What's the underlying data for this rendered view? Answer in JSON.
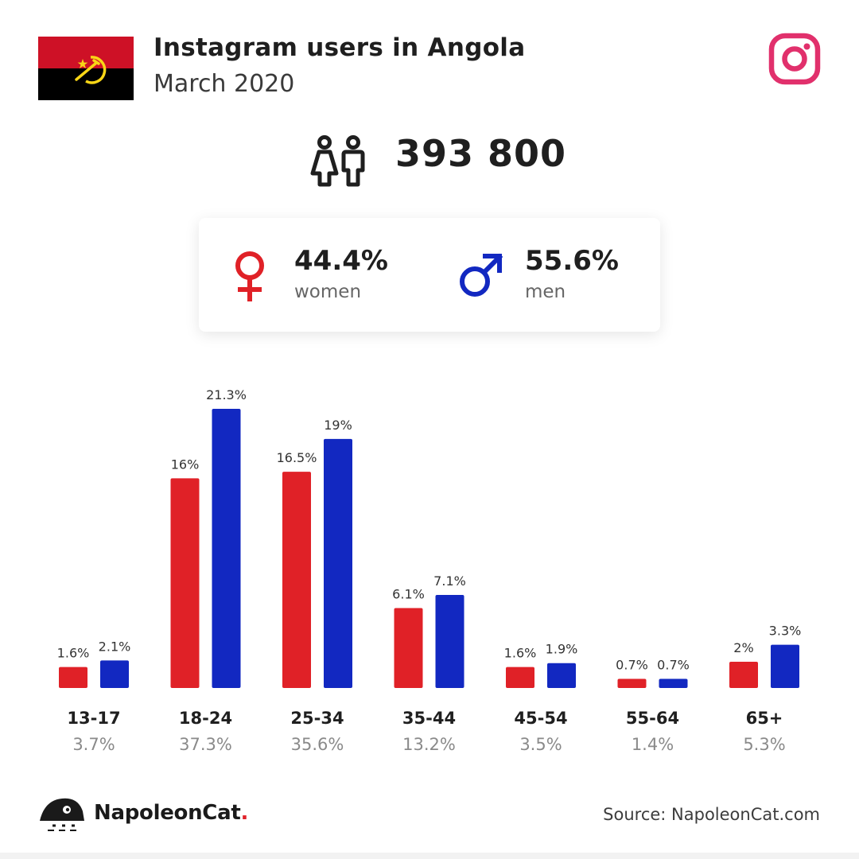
{
  "header": {
    "title": "Instagram users in Angola",
    "subtitle": "March 2020"
  },
  "summary": {
    "total_users": "393 800",
    "women_pct": "44.4%",
    "women_label": "women",
    "men_pct": "55.6%",
    "men_label": "men"
  },
  "colors": {
    "women": "#e02127",
    "men": "#1228c1",
    "instagram": "#e1306c",
    "flag_red": "#ce1126",
    "flag_black": "#000000",
    "flag_emblem": "#f9d616"
  },
  "icons": {
    "flag": "angola-flag-icon",
    "instagram": "instagram-icon",
    "people": "people-icon",
    "women": "female-symbol-icon",
    "men": "male-symbol-icon",
    "brand": "napoleoncat-logo-icon"
  },
  "chart_data": {
    "type": "bar",
    "categories": [
      "13-17",
      "18-24",
      "25-34",
      "35-44",
      "45-54",
      "55-64",
      "65+"
    ],
    "category_totals": [
      "3.7%",
      "37.3%",
      "35.6%",
      "13.2%",
      "3.5%",
      "1.4%",
      "5.3%"
    ],
    "series": [
      {
        "values": [
          1.6,
          16,
          16.5,
          6.1,
          1.6,
          0.7,
          2
        ],
        "labels": [
          "1.6%",
          "16%",
          "16.5%",
          "6.1%",
          "1.6%",
          "0.7%",
          "2%"
        ]
      },
      {
        "values": [
          2.1,
          21.3,
          19,
          7.1,
          1.9,
          0.7,
          3.3
        ],
        "labels": [
          "2.1%",
          "21.3%",
          "19%",
          "7.1%",
          "1.9%",
          "0.7%",
          "3.3%"
        ]
      }
    ],
    "ylim": [
      0,
      21.3
    ],
    "grid": false
  },
  "footer": {
    "brand": "NapoleonCat",
    "brand_dot": ".",
    "source": "Source: NapoleonCat.com"
  }
}
